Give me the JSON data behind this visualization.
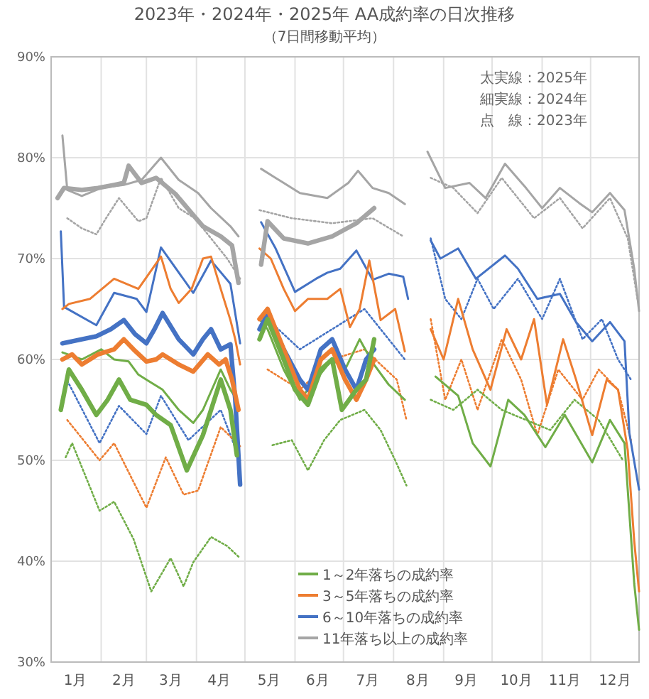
{
  "chart_data": {
    "type": "line",
    "title": "2023年・2024年・2025年 AA成約率の日次推移",
    "subtitle": "（7日間移動平均）",
    "annotations": [
      "太実線：2025年",
      "細実線：2024年",
      "点　線：2023年"
    ],
    "xlim": [
      "--01-01",
      "--12-31"
    ],
    "ylim": [
      30,
      90
    ],
    "xticks": [
      {
        "value": "--01-01",
        "label": null
      },
      {
        "value": "--01-16",
        "label": "1月"
      },
      {
        "value": "--02-01",
        "label": null
      },
      {
        "value": "--02-15",
        "label": "2月"
      },
      {
        "value": "--03-01",
        "label": null
      },
      {
        "value": "--03-16",
        "label": "3月"
      },
      {
        "value": "--04-01",
        "label": null
      },
      {
        "value": "--04-15",
        "label": "4月"
      },
      {
        "value": "--05-01",
        "label": null
      },
      {
        "value": "--05-16",
        "label": "5月"
      },
      {
        "value": "--06-01",
        "label": null
      },
      {
        "value": "--06-15",
        "label": "6月"
      },
      {
        "value": "--07-01",
        "label": null
      },
      {
        "value": "--07-16",
        "label": "7月"
      },
      {
        "value": "--08-01",
        "label": null
      },
      {
        "value": "--08-16",
        "label": "8月"
      },
      {
        "value": "--09-01",
        "label": null
      },
      {
        "value": "--09-15",
        "label": "9月"
      },
      {
        "value": "--10-01",
        "label": null
      },
      {
        "value": "--10-16",
        "label": "10月"
      },
      {
        "value": "--11-01",
        "label": null
      },
      {
        "value": "--11-15",
        "label": "11月"
      },
      {
        "value": "--12-01",
        "label": null
      },
      {
        "value": "--12-16",
        "label": "12月"
      },
      {
        "value": "--12-31",
        "label": null
      }
    ],
    "yticks": [
      {
        "value": 30,
        "label": "30%"
      },
      {
        "value": 40,
        "label": "40%"
      },
      {
        "value": 50,
        "label": "50%"
      },
      {
        "value": 60,
        "label": "60%"
      },
      {
        "value": 70,
        "label": "70%"
      },
      {
        "value": 80,
        "label": "80%"
      },
      {
        "value": 90,
        "label": "90%"
      }
    ],
    "grid": true,
    "legend": "bottom right",
    "series": [
      {
        "color": "#70ad47",
        "line_style": "solid",
        "x": [
          "--01-07",
          "--01-12",
          "--01-20",
          "--01-29",
          "--02-05",
          "--02-12",
          "--02-19",
          "--03-01",
          "--03-07",
          "--03-16",
          "--03-26",
          "--04-05",
          "--04-10",
          "--04-16",
          "--04-22",
          "--04-26",
          null,
          "--05-10",
          "--05-15",
          "--05-25",
          "--06-01",
          "--06-09",
          "--06-17",
          "--06-24",
          "--06-30",
          "--07-09",
          "--07-15",
          "--07-20"
        ],
        "values": [
          55,
          59,
          57,
          54.5,
          56,
          58,
          56,
          55.5,
          54.5,
          53.5,
          49,
          52.5,
          55,
          58,
          55,
          50.5,
          null,
          62,
          64,
          60,
          57,
          55.5,
          59,
          60,
          55,
          57,
          58,
          62
        ]
      },
      {
        "color": "#ed7d31",
        "line_style": "solid",
        "x": [
          "--01-08",
          "--01-14",
          "--01-20",
          "--01-30",
          "--02-09",
          "--02-15",
          "--02-21",
          "--03-01",
          "--03-07",
          "--03-11",
          "--03-21",
          "--03-30",
          "--04-08",
          "--04-15",
          "--04-19",
          "--04-23",
          "--04-27",
          null,
          "--05-10",
          "--05-15",
          "--05-25",
          "--06-04",
          "--06-09",
          "--06-17",
          "--06-24",
          "--07-02",
          "--07-09",
          "--07-15",
          "--07-20"
        ],
        "values": [
          60,
          60.5,
          59.5,
          60.5,
          61,
          62,
          61,
          59.8,
          60,
          60.5,
          59.5,
          58.8,
          60.5,
          59.5,
          60,
          58,
          55,
          null,
          64,
          65,
          61,
          57,
          56,
          60,
          61,
          58,
          56,
          58,
          60
        ]
      },
      {
        "color": "#4472c4",
        "line_style": "solid",
        "x": [
          "--01-08",
          "--01-20",
          "--01-29",
          "--02-07",
          "--02-15",
          "--02-22",
          "--03-01",
          "--03-06",
          "--03-11",
          "--03-21",
          "--03-30",
          "--04-05",
          "--04-10",
          "--04-16",
          "--04-22",
          "--04-25",
          "--04-28",
          null,
          "--05-10",
          "--05-15",
          "--05-25",
          "--06-04",
          "--06-09",
          "--06-17",
          "--06-24",
          "--07-02",
          "--07-09",
          "--07-15",
          "--07-20"
        ],
        "values": [
          61.6,
          62,
          62.3,
          63,
          63.9,
          62.5,
          61.6,
          63,
          64.6,
          62,
          60.5,
          62,
          63,
          61,
          61.5,
          56,
          47.6,
          null,
          63,
          64.5,
          61,
          58,
          57,
          61,
          62,
          59,
          57,
          60,
          61
        ]
      },
      {
        "color": "#a5a5a5",
        "line_style": "solid",
        "x": [
          "--01-05",
          "--01-09",
          "--01-20",
          "--01-30",
          "--02-09",
          "--02-15",
          "--02-18",
          "--02-26",
          "--03-07",
          "--03-19",
          "--03-29",
          "--04-05",
          "--04-16",
          "--04-23",
          "--04-27",
          null,
          "--05-11",
          "--05-15",
          "--05-25",
          "--06-09",
          "--06-24",
          "--07-09",
          "--07-20"
        ],
        "values": [
          76,
          77,
          76.8,
          77,
          77.3,
          77.5,
          79.2,
          77.5,
          78,
          76.4,
          74.5,
          73.2,
          72.2,
          71.3,
          67.6,
          null,
          69.4,
          73.7,
          72,
          71.5,
          72.2,
          73.5,
          75
        ]
      },
      {
        "name": "1～2年落ちの成約率",
        "color": "#70ad47",
        "line_style": "solid",
        "x": [
          "--01-08",
          "--01-20",
          "--02-01",
          "--02-09",
          "--02-18",
          "--02-24",
          "--03-01",
          "--03-11",
          "--03-21",
          "--03-30",
          "--04-05",
          "--04-16",
          "--04-22",
          "--04-26",
          null,
          "--05-10",
          "--05-15",
          "--05-25",
          "--06-04",
          "--06-14",
          "--06-24",
          "--07-02",
          "--07-11",
          "--07-19",
          "--07-29",
          "--08-08",
          null,
          "--08-27",
          "--09-10",
          "--09-19",
          "--09-30",
          "--10-11",
          "--10-21",
          "--11-03",
          "--11-15",
          "--12-02",
          "--12-13",
          "--12-22",
          "--12-28",
          "--12-31"
        ],
        "values": [
          60.7,
          60,
          61,
          60,
          59.8,
          58.5,
          58,
          57,
          55,
          53.7,
          55,
          59,
          57,
          56,
          null,
          64,
          63,
          59,
          56,
          58,
          60,
          59,
          62,
          59.7,
          57.5,
          56,
          null,
          58.3,
          56.4,
          51.7,
          49.4,
          56,
          54.5,
          51.3,
          54.5,
          49.8,
          54,
          51.7,
          37.8,
          33.2
        ]
      },
      {
        "name": "3～5年落ちの成約率",
        "color": "#ed7d31",
        "line_style": "solid",
        "x": [
          "--01-08",
          "--01-12",
          "--01-25",
          "--02-09",
          "--02-24",
          "--03-10",
          "--03-16",
          "--03-21",
          "--03-29",
          "--04-05",
          "--04-10",
          "--04-16",
          "--04-22",
          "--04-25",
          "--04-28",
          null,
          "--05-10",
          "--05-17",
          "--05-25",
          "--06-01",
          "--06-09",
          "--06-21",
          "--06-29",
          "--07-05",
          "--07-11",
          "--07-17",
          "--07-24",
          "--08-02",
          "--08-08",
          null,
          "--08-24",
          "--09-01",
          "--09-10",
          "--09-19",
          "--09-30",
          "--10-10",
          "--10-19",
          "--10-27",
          "--11-04",
          "--11-14",
          "--11-22",
          "--12-02",
          "--12-11",
          "--12-18",
          "--12-24",
          "--12-28",
          "--12-31"
        ],
        "values": [
          65,
          65.5,
          66,
          68,
          67,
          70.2,
          67,
          65.6,
          67,
          70,
          70.2,
          67,
          63.9,
          62,
          59.5,
          null,
          71,
          70,
          67,
          64.8,
          66,
          66,
          67,
          63.2,
          65,
          69.8,
          63.9,
          65,
          60.8,
          null,
          63,
          60,
          66,
          61,
          57,
          63,
          60,
          64,
          55.5,
          62,
          58,
          52.5,
          58,
          57,
          51,
          42,
          37
        ]
      },
      {
        "name": "6～10年落ちの成約率",
        "color": "#4472c4",
        "line_style": "solid",
        "x": [
          "--01-07",
          "--01-09",
          "--01-29",
          "--02-09",
          "--02-23",
          "--03-01",
          "--03-10",
          "--03-30",
          "--04-10",
          "--04-22",
          "--04-28",
          null,
          "--05-11",
          "--05-20",
          "--06-01",
          "--06-14",
          "--06-21",
          "--06-29",
          "--07-09",
          "--07-19",
          "--07-29",
          "--08-07",
          "--08-10",
          null,
          "--08-24",
          "--08-30",
          "--09-10",
          "--09-21",
          "--10-09",
          "--10-17",
          "--10-29",
          "--11-12",
          "--11-22",
          "--12-02",
          "--12-13",
          "--12-22",
          "--12-25",
          "--12-31"
        ],
        "values": [
          72.7,
          65.2,
          63.4,
          66.6,
          66,
          64.7,
          71.1,
          66.6,
          69.8,
          67.5,
          61.6,
          null,
          73.6,
          71,
          66.7,
          68,
          68.6,
          69,
          70.8,
          67.9,
          68.5,
          68.2,
          66,
          null,
          71.8,
          70,
          71,
          68,
          70.3,
          69,
          66,
          66.5,
          63.7,
          61.8,
          63.7,
          61.8,
          52.7,
          47.1
        ]
      },
      {
        "name": "11年落ち以上の成約率",
        "color": "#a5a5a5",
        "line_style": "solid",
        "x": [
          "--01-08",
          "--01-11",
          "--01-20",
          "--02-01",
          "--02-15",
          "--02-26",
          "--03-10",
          "--03-21",
          "--04-02",
          "--04-10",
          "--04-22",
          "--04-27",
          null,
          "--05-11",
          "--05-20",
          "--06-04",
          "--06-21",
          "--07-04",
          "--07-10",
          "--07-19",
          "--07-29",
          "--08-08",
          null,
          "--08-22",
          "--09-02",
          "--09-17",
          "--09-27",
          "--10-09",
          "--10-22",
          "--11-01",
          "--11-12",
          "--11-24",
          "--12-02",
          "--12-13",
          "--12-22",
          "--12-28",
          "--12-31"
        ],
        "values": [
          82.2,
          76.8,
          76.2,
          77,
          77.3,
          77.8,
          80,
          77.8,
          76.5,
          75,
          73.2,
          72.2,
          null,
          78.9,
          78,
          76.5,
          76,
          77.5,
          78.7,
          77,
          76.5,
          75.4,
          null,
          80.6,
          77,
          77.5,
          76,
          79.4,
          77,
          75,
          77,
          75.5,
          74.6,
          76.5,
          74.8,
          69,
          64.8
        ]
      },
      {
        "color": "#70ad47",
        "line_style": "dotted",
        "x": [
          "--01-10",
          "--01-14",
          "--01-31",
          "--02-09",
          "--02-21",
          "--03-04",
          "--03-16",
          "--03-24",
          "--03-30",
          "--04-10",
          "--04-20",
          "--04-28",
          null,
          "--05-18",
          "--05-30",
          "--06-09",
          "--06-19",
          "--06-29",
          "--07-14",
          "--07-24",
          "--08-02",
          "--08-09",
          null,
          "--08-24",
          "--09-07",
          "--09-22",
          "--10-07",
          "--10-22",
          "--11-06",
          "--11-21",
          "--12-06",
          "--12-21"
        ],
        "values": [
          50.3,
          51.7,
          45,
          45.9,
          42.2,
          37,
          40.3,
          37.5,
          39.9,
          42.4,
          41.5,
          40.3,
          null,
          51.5,
          52,
          49,
          52,
          54,
          55,
          53,
          50,
          47.5,
          null,
          56,
          55,
          57,
          55,
          54,
          53,
          56,
          54,
          50
        ]
      },
      {
        "color": "#ed7d31",
        "line_style": "dotted",
        "x": [
          "--01-11",
          "--01-31",
          "--02-09",
          "--03-01",
          "--03-13",
          "--03-24",
          "--04-02",
          "--04-16",
          "--04-28",
          null,
          "--05-15",
          "--06-04",
          "--06-24",
          "--07-14",
          "--08-03",
          "--08-09",
          null,
          "--08-24",
          "--09-02",
          "--09-12",
          "--09-22",
          "--10-07",
          "--10-19",
          "--10-29",
          "--11-11",
          "--11-26",
          "--12-06",
          "--12-18",
          "--12-26"
        ],
        "values": [
          54,
          50,
          51.7,
          45.3,
          50.3,
          46.6,
          47,
          53.3,
          51.4,
          null,
          59,
          57,
          60,
          61,
          58,
          54,
          null,
          64,
          56,
          60,
          55,
          62,
          58,
          52.5,
          59,
          56,
          59,
          57,
          52
        ]
      },
      {
        "color": "#4472c4",
        "line_style": "dotted",
        "x": [
          "--01-11",
          "--01-31",
          "--02-12",
          "--03-01",
          "--03-10",
          "--03-27",
          "--04-16",
          "--04-28",
          null,
          "--05-15",
          "--06-04",
          "--06-24",
          "--07-14",
          "--08-08",
          null,
          "--08-24",
          "--09-02",
          "--09-12",
          "--09-22",
          "--10-02",
          "--10-17",
          "--11-01",
          "--11-12",
          "--11-26",
          "--12-08",
          "--12-18",
          "--12-26"
        ],
        "values": [
          57.9,
          51.7,
          55.4,
          52.6,
          56.4,
          52,
          55,
          50,
          null,
          64,
          61,
          63,
          65,
          60,
          null,
          72,
          66,
          64,
          68,
          65,
          68,
          64,
          68,
          62,
          64,
          60,
          58
        ]
      },
      {
        "color": "#a5a5a5",
        "line_style": "dotted",
        "x": [
          "--01-11",
          "--01-20",
          "--01-29",
          "--02-04",
          "--02-12",
          "--02-24",
          "--03-01",
          "--03-10",
          "--03-21",
          "--03-31",
          "--04-10",
          "--04-20",
          "--04-28",
          null,
          "--05-10",
          "--05-30",
          "--06-24",
          "--07-19",
          "--08-07",
          null,
          "--08-24",
          "--09-07",
          "--09-22",
          "--10-07",
          "--10-27",
          "--11-12",
          "--11-26",
          "--12-13",
          "--12-24",
          "--12-30"
        ],
        "values": [
          74,
          73,
          72.4,
          74,
          76,
          73.7,
          74,
          78,
          75,
          74,
          72,
          70,
          68,
          null,
          74.8,
          74,
          73.5,
          74,
          72.2,
          null,
          78,
          77,
          74.5,
          78,
          74,
          76,
          73,
          76,
          72,
          66
        ]
      }
    ]
  }
}
